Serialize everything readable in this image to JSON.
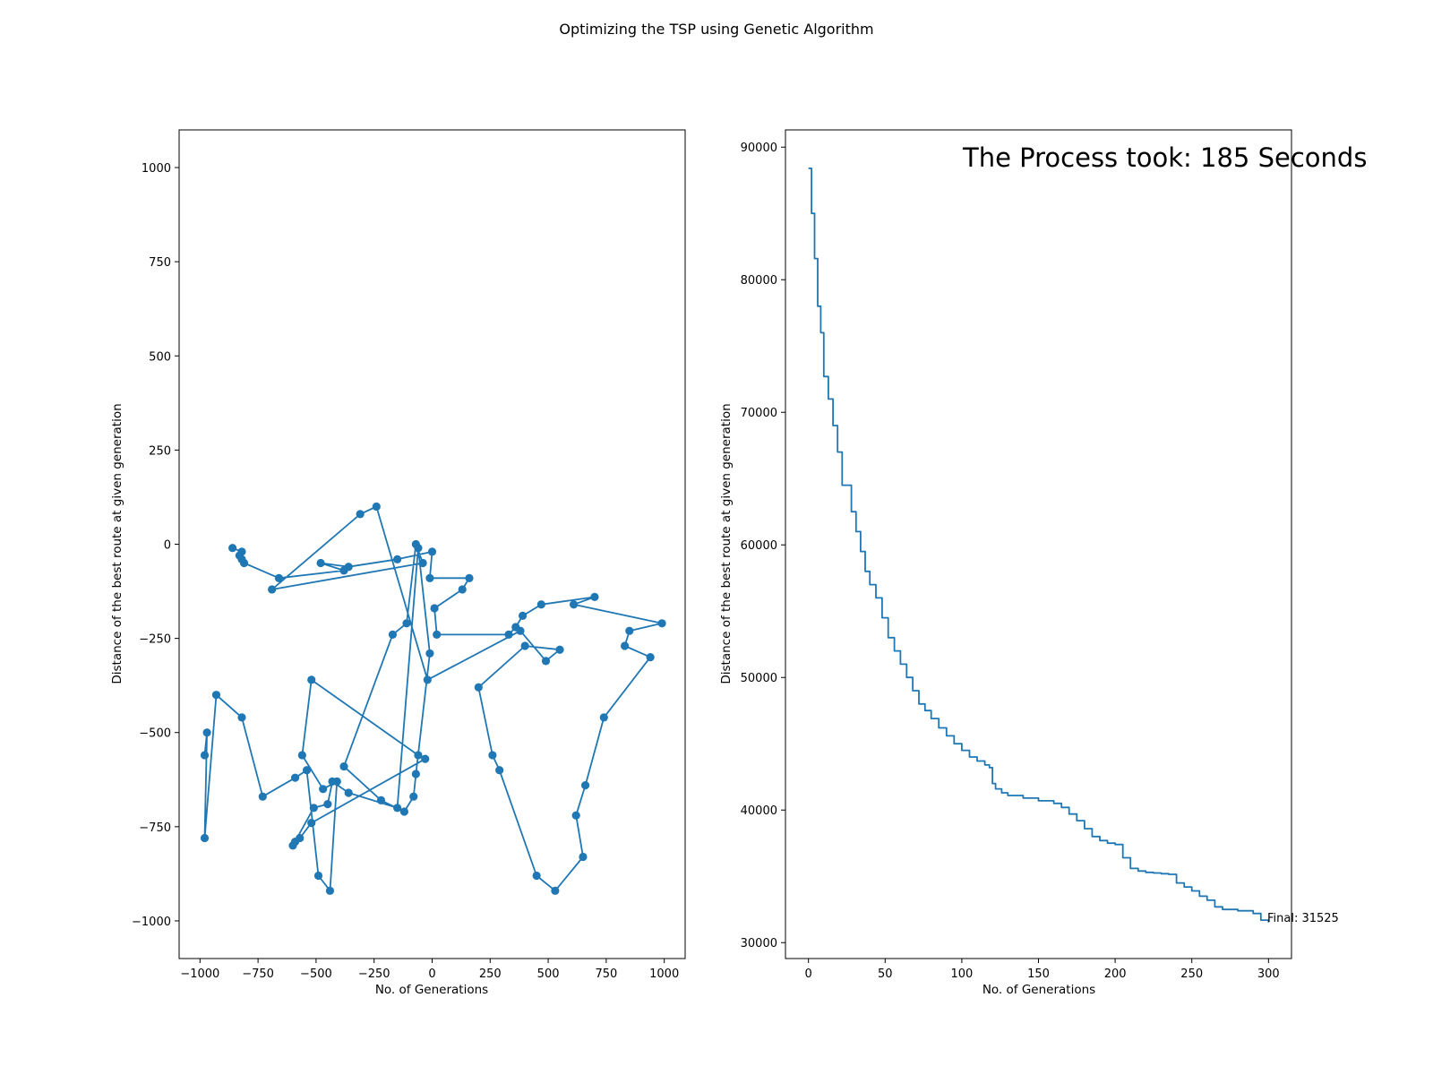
{
  "figure": {
    "suptitle": "Optimizing the TSP using Genetic Algorithm"
  },
  "chart_data": [
    {
      "type": "line",
      "subtype": "route-with-markers",
      "title": "",
      "xlabel": "No. of Generations",
      "ylabel": "Distance of the best route at given generation",
      "xlim": [
        -1090,
        1090
      ],
      "ylim": [
        -1100,
        1100
      ],
      "xticks": [
        -1000,
        -750,
        -500,
        -250,
        0,
        250,
        500,
        750,
        1000
      ],
      "yticks": [
        -1000,
        -750,
        -500,
        -250,
        0,
        250,
        500,
        750,
        1000
      ],
      "xtick_labels": [
        "−1000",
        "−750",
        "−500",
        "−250",
        "0",
        "250",
        "500",
        "750",
        "1000"
      ],
      "ytick_labels": [
        "−1000",
        "−750",
        "−500",
        "−250",
        "0",
        "250",
        "500",
        "750",
        "1000"
      ],
      "grid": false,
      "color": "#1f77b4",
      "series": [
        {
          "x": [
            -980,
            -970,
            -980,
            -930,
            -820,
            -730,
            -590,
            -540,
            -490,
            -440,
            -410,
            -470,
            -560,
            -520,
            -60,
            -30,
            -520,
            -570,
            -590,
            -600,
            -510,
            -450,
            -430,
            -360,
            -150,
            -60,
            -10,
            -70,
            -80,
            -120,
            -220,
            -380,
            -170,
            -110,
            -70,
            -40,
            -690,
            -310,
            -240,
            -20,
            380,
            490,
            550,
            400,
            200,
            260,
            290,
            450,
            530,
            650,
            620,
            660,
            740,
            940,
            830,
            850,
            990,
            610,
            700,
            470,
            390,
            360,
            330,
            20,
            10,
            130,
            160,
            -10,
            0,
            -150,
            -360,
            -480,
            -380,
            -660,
            -810,
            -820,
            -830,
            -820,
            -860
          ],
          "y": [
            -560,
            -500,
            -780,
            -400,
            -460,
            -670,
            -620,
            -600,
            -880,
            -920,
            -630,
            -650,
            -560,
            -360,
            -560,
            -570,
            -740,
            -780,
            -790,
            -800,
            -700,
            -690,
            -630,
            -660,
            -700,
            -10,
            -290,
            -610,
            -670,
            -710,
            -680,
            -590,
            -240,
            -210,
            0,
            -50,
            -120,
            80,
            100,
            -360,
            -230,
            -310,
            -280,
            -270,
            -380,
            -560,
            -600,
            -880,
            -920,
            -830,
            -720,
            -640,
            -460,
            -300,
            -270,
            -230,
            -210,
            -160,
            -140,
            -160,
            -190,
            -220,
            -240,
            -240,
            -170,
            -120,
            -90,
            -90,
            -20,
            -40,
            -60,
            -50,
            -70,
            -90,
            -50,
            -40,
            -30,
            -20,
            -10
          ]
        }
      ]
    },
    {
      "type": "line",
      "title": "",
      "xlabel": "No. of Generations",
      "ylabel": "Distance of the best route at given generation",
      "xlim": [
        -15,
        315
      ],
      "ylim": [
        28800,
        91300
      ],
      "xticks": [
        0,
        50,
        100,
        150,
        200,
        250,
        300
      ],
      "yticks": [
        30000,
        40000,
        50000,
        60000,
        70000,
        80000,
        90000
      ],
      "xtick_labels": [
        "0",
        "50",
        "100",
        "150",
        "200",
        "250",
        "300"
      ],
      "ytick_labels": [
        "30000",
        "40000",
        "50000",
        "60000",
        "70000",
        "80000",
        "90000"
      ],
      "grid": false,
      "color": "#1f77b4",
      "series": [
        {
          "x": [
            0,
            2,
            4,
            6,
            8,
            10,
            13,
            16,
            19,
            22,
            25,
            28,
            31,
            34,
            37,
            40,
            44,
            48,
            52,
            56,
            60,
            64,
            68,
            72,
            76,
            80,
            85,
            90,
            95,
            100,
            105,
            110,
            115,
            118,
            120,
            122,
            126,
            130,
            140,
            150,
            160,
            165,
            170,
            175,
            180,
            185,
            190,
            195,
            200,
            205,
            210,
            215,
            220,
            225,
            230,
            235,
            240,
            245,
            250,
            255,
            260,
            265,
            270,
            280,
            290,
            295,
            300
          ],
          "values": [
            88400,
            85000,
            81600,
            78000,
            76000,
            72700,
            71000,
            69000,
            67000,
            64500,
            64500,
            62500,
            61000,
            59500,
            58000,
            57000,
            56000,
            54500,
            53000,
            52000,
            51000,
            50000,
            49000,
            48000,
            47500,
            46900,
            46200,
            45600,
            45000,
            44500,
            44000,
            43700,
            43400,
            43200,
            42000,
            41600,
            41300,
            41100,
            40900,
            40700,
            40500,
            40200,
            39700,
            39200,
            38600,
            38000,
            37700,
            37500,
            37400,
            36400,
            35600,
            35400,
            35300,
            35250,
            35200,
            35150,
            34500,
            34200,
            33900,
            33500,
            33200,
            32700,
            32500,
            32400,
            32200,
            31700,
            31525
          ]
        }
      ],
      "annotations": {
        "final_label": "Final: 31525",
        "overlay_text": "The Process took: 185 Seconds"
      }
    }
  ]
}
